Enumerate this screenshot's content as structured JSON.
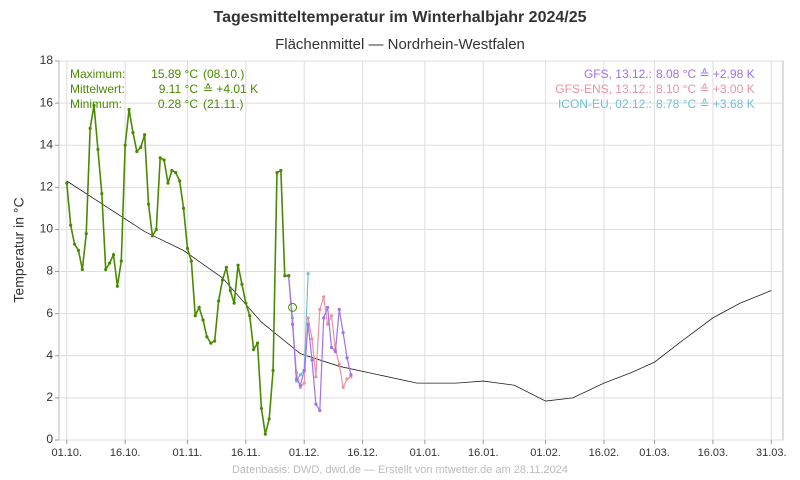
{
  "chart_data": {
    "type": "line",
    "title": "Tagesmitteltemperatur im Winterhalbjahr 2024/25",
    "subtitle": "Flächenmittel — Nordrhein-Westfalen",
    "y_label": "Temperatur in °C",
    "footer": "Datenbasis: DWD, dwd.de — Erstellt von mtwetter.de am 28.11.2024",
    "xlim": [
      -2,
      184
    ],
    "ylim": [
      0,
      18
    ],
    "xticks": [
      {
        "value": 0,
        "label": "01.10."
      },
      {
        "value": 15,
        "label": "16.10."
      },
      {
        "value": 31,
        "label": "01.11."
      },
      {
        "value": 46,
        "label": "16.11."
      },
      {
        "value": 61,
        "label": "01.12."
      },
      {
        "value": 76,
        "label": "16.12."
      },
      {
        "value": 92,
        "label": "01.01."
      },
      {
        "value": 107,
        "label": "16.01."
      },
      {
        "value": 123,
        "label": "01.02."
      },
      {
        "value": 138,
        "label": "16.02."
      },
      {
        "value": 151,
        "label": "01.03."
      },
      {
        "value": 166,
        "label": "16.03."
      },
      {
        "value": 181,
        "label": "31.03."
      }
    ],
    "yticks": [
      0,
      2,
      4,
      6,
      8,
      10,
      12,
      14,
      16,
      18
    ],
    "grid": true,
    "stats": [
      {
        "label": "Maximum:",
        "value": "15.89 °C",
        "note": "(08.10.)"
      },
      {
        "label": "Mittelwert:",
        "value": "9.11 °C",
        "note": "≙ +4.01 K"
      },
      {
        "label": "Minimum:",
        "value": "0.28 °C",
        "note": "(21.11.)"
      }
    ],
    "stats_color": "#4a8a00",
    "highlight": {
      "x": 58,
      "y": 6.3,
      "color": "#4a8a00"
    },
    "series": [
      {
        "color": "#222222",
        "markers": false,
        "width": 0.8,
        "x": [
          0,
          10,
          20,
          30,
          40,
          50,
          60,
          70,
          80,
          90,
          100,
          107,
          115,
          123,
          130,
          138,
          145,
          151,
          158,
          166,
          173,
          181
        ],
        "values": [
          12.3,
          11.1,
          9.9,
          9.0,
          7.7,
          5.6,
          4.1,
          3.5,
          3.1,
          2.7,
          2.7,
          2.8,
          2.6,
          1.85,
          2.0,
          2.7,
          3.2,
          3.7,
          4.7,
          5.8,
          6.5,
          7.1
        ]
      },
      {
        "color": "#70c0d0",
        "markers": true,
        "width": 1.2,
        "name": "ICON-EU, 02.12.:",
        "summary": "8.78 °C ≙ +3.68 K",
        "x": [
          57,
          58,
          59,
          60,
          61,
          62
        ],
        "values": [
          7.8,
          5.8,
          2.8,
          3.1,
          3.3,
          7.9
        ]
      },
      {
        "color": "#f090a0",
        "markers": true,
        "width": 1.2,
        "name": "GFS-ENS, 13.12.:",
        "summary": "8.10 °C ≙ +3.00 K",
        "x": [
          57,
          58,
          59,
          60,
          61,
          62,
          63,
          64,
          65,
          66,
          67,
          68,
          69,
          70,
          71,
          72,
          73
        ],
        "values": [
          7.8,
          5.5,
          3.2,
          2.5,
          2.7,
          5.8,
          4.8,
          3.0,
          6.2,
          6.8,
          5.5,
          5.9,
          4.3,
          3.6,
          2.5,
          2.9,
          3.0
        ]
      },
      {
        "color": "#a070f0",
        "markers": true,
        "width": 1.2,
        "name": "GFS, 13.12.:",
        "summary": "8.08 °C ≙ +2.98 K",
        "x": [
          57,
          58,
          59,
          60,
          61,
          62,
          63,
          64,
          65,
          66,
          67,
          68,
          69,
          70,
          71,
          72,
          73
        ],
        "values": [
          7.8,
          5.5,
          2.9,
          2.6,
          3.3,
          5.5,
          3.8,
          1.7,
          1.4,
          5.8,
          6.3,
          4.4,
          4.2,
          6.2,
          5.1,
          3.9,
          3.1
        ]
      },
      {
        "color": "#4a8a00",
        "markers": true,
        "width": 1.6,
        "x": [
          0,
          1,
          2,
          3,
          4,
          5,
          6,
          7,
          8,
          9,
          10,
          11,
          12,
          13,
          14,
          15,
          16,
          17,
          18,
          19,
          20,
          21,
          22,
          23,
          24,
          25,
          26,
          27,
          28,
          29,
          30,
          31,
          32,
          33,
          34,
          35,
          36,
          37,
          38,
          39,
          40,
          41,
          42,
          43,
          44,
          45,
          46,
          47,
          48,
          49,
          50,
          51,
          52,
          53,
          54,
          55,
          56,
          57
        ],
        "values": [
          12.2,
          10.2,
          9.3,
          9.0,
          8.1,
          9.8,
          14.8,
          15.89,
          13.8,
          11.7,
          8.1,
          8.4,
          8.8,
          7.3,
          8.5,
          14.0,
          15.7,
          14.6,
          13.7,
          13.9,
          14.5,
          11.2,
          9.7,
          10.0,
          13.4,
          13.3,
          12.2,
          12.8,
          12.7,
          12.3,
          11.0,
          9.1,
          8.5,
          5.9,
          6.3,
          5.7,
          4.9,
          4.6,
          4.7,
          6.6,
          7.6,
          8.2,
          7.1,
          6.5,
          8.3,
          7.4,
          6.5,
          5.9,
          4.3,
          4.6,
          1.5,
          0.28,
          1.0,
          3.3,
          12.7,
          12.8,
          7.8,
          7.8
        ]
      }
    ]
  }
}
